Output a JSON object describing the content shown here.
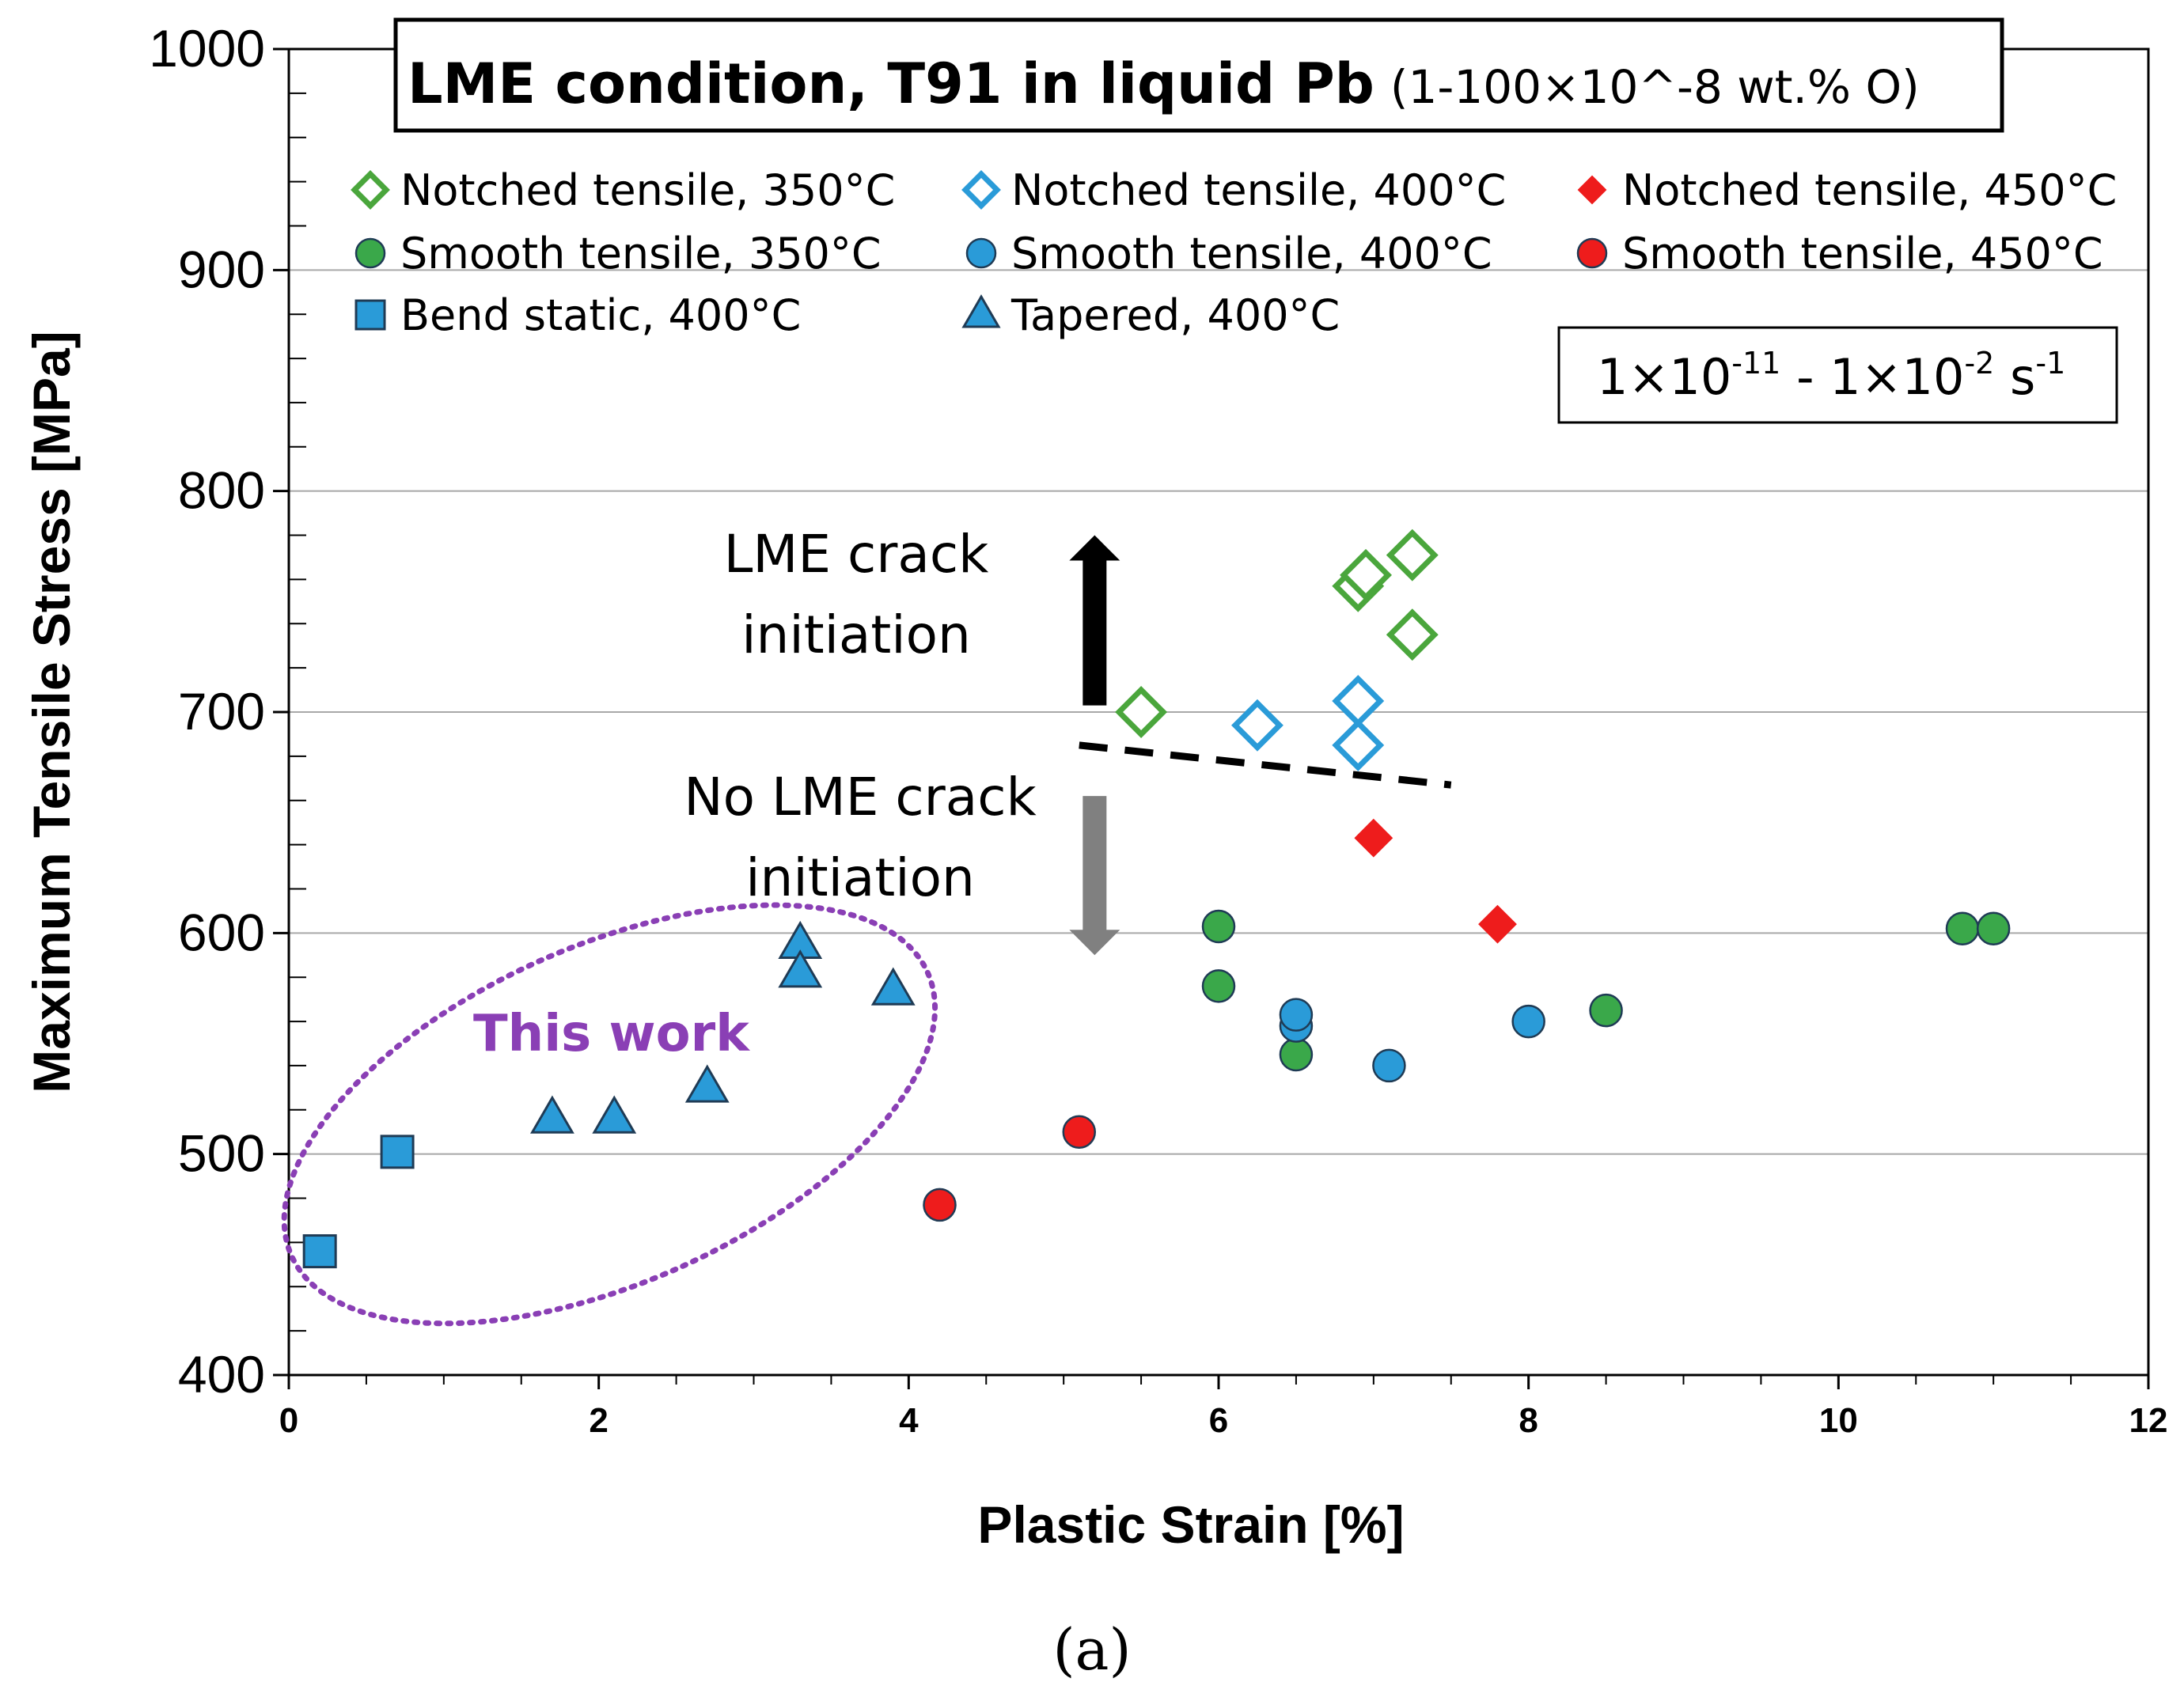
{
  "chart_data": {
    "type": "scatter",
    "title": "LME condition, T91 in liquid Pb",
    "subtitle": "(1-100×10^-8 wt.% O)",
    "xlabel": "Plastic Strain [%]",
    "ylabel": "Maximum Tensile Stress [MPa]",
    "xlim": [
      0,
      12
    ],
    "ylim": [
      400,
      1000
    ],
    "x_ticks": [
      "0",
      "2",
      "4",
      "6",
      "8",
      "10",
      "12"
    ],
    "y_ticks": [
      "400",
      "500",
      "600",
      "700",
      "800",
      "900",
      "1000"
    ],
    "grid": "horizontal major",
    "legend_position": "top",
    "series": [
      {
        "name": "Notched tensile, 350°C",
        "marker": "diamond-open",
        "color": "#4aa63c",
        "points": [
          [
            5.5,
            700
          ],
          [
            6.9,
            757
          ],
          [
            6.95,
            762
          ],
          [
            7.25,
            771
          ],
          [
            7.25,
            735
          ]
        ]
      },
      {
        "name": "Notched tensile, 400°C",
        "marker": "diamond-open",
        "color": "#2a9bd8",
        "points": [
          [
            6.25,
            694
          ],
          [
            6.9,
            705
          ],
          [
            6.9,
            685
          ]
        ]
      },
      {
        "name": "Notched tensile, 450°C",
        "marker": "diamond-filled",
        "color": "#ee1c1c",
        "points": [
          [
            7.0,
            643
          ],
          [
            7.8,
            604
          ]
        ]
      },
      {
        "name": "Smooth tensile, 350°C",
        "marker": "circle",
        "color": "#3aa84a",
        "points": [
          [
            6.0,
            603
          ],
          [
            6.0,
            576
          ],
          [
            6.5,
            545
          ],
          [
            8.5,
            565
          ],
          [
            10.8,
            602
          ],
          [
            11.0,
            602
          ]
        ]
      },
      {
        "name": "Smooth tensile, 400°C",
        "marker": "circle",
        "color": "#2a9bd8",
        "points": [
          [
            6.5,
            558
          ],
          [
            6.5,
            563
          ],
          [
            7.1,
            540
          ],
          [
            8.0,
            560
          ]
        ]
      },
      {
        "name": "Smooth tensile, 450°C",
        "marker": "circle",
        "color": "#ee1c1c",
        "points": [
          [
            4.2,
            477
          ],
          [
            5.1,
            510
          ]
        ]
      },
      {
        "name": "Bend static, 400°C",
        "marker": "square",
        "color": "#2a9bd8",
        "points": [
          [
            0.2,
            456
          ],
          [
            0.7,
            501
          ]
        ]
      },
      {
        "name": "Tapered, 400°C",
        "marker": "triangle",
        "color": "#2a9bd8",
        "points": [
          [
            1.7,
            516
          ],
          [
            2.1,
            516
          ],
          [
            2.7,
            530
          ],
          [
            3.3,
            595
          ],
          [
            3.3,
            582
          ],
          [
            3.9,
            574
          ]
        ]
      }
    ],
    "threshold_line": {
      "x": [
        5.1,
        7.5
      ],
      "y": [
        685,
        667
      ],
      "style": "dashed",
      "color": "#000000"
    },
    "arrow_up": {
      "x": 5.2,
      "y_from": 703,
      "y_to": 780,
      "color": "#000000"
    },
    "arrow_down": {
      "x": 5.2,
      "y_from": 662,
      "y_to": 590,
      "color": "#808080"
    },
    "annotations": {
      "lme_line1": "LME crack",
      "lme_line2": "initiation",
      "nolme_line1": "No LME crack",
      "nolme_line2": "initiation",
      "this_work": "This work",
      "rate_base1": "1×10",
      "rate_exp1": "-11",
      "rate_mid": " - 1×10",
      "rate_exp2": "-2",
      "rate_unit": " s",
      "rate_exp3": "-1"
    },
    "this_work_ellipse_color": "#8a3fb5",
    "panel_label": "(a)"
  }
}
